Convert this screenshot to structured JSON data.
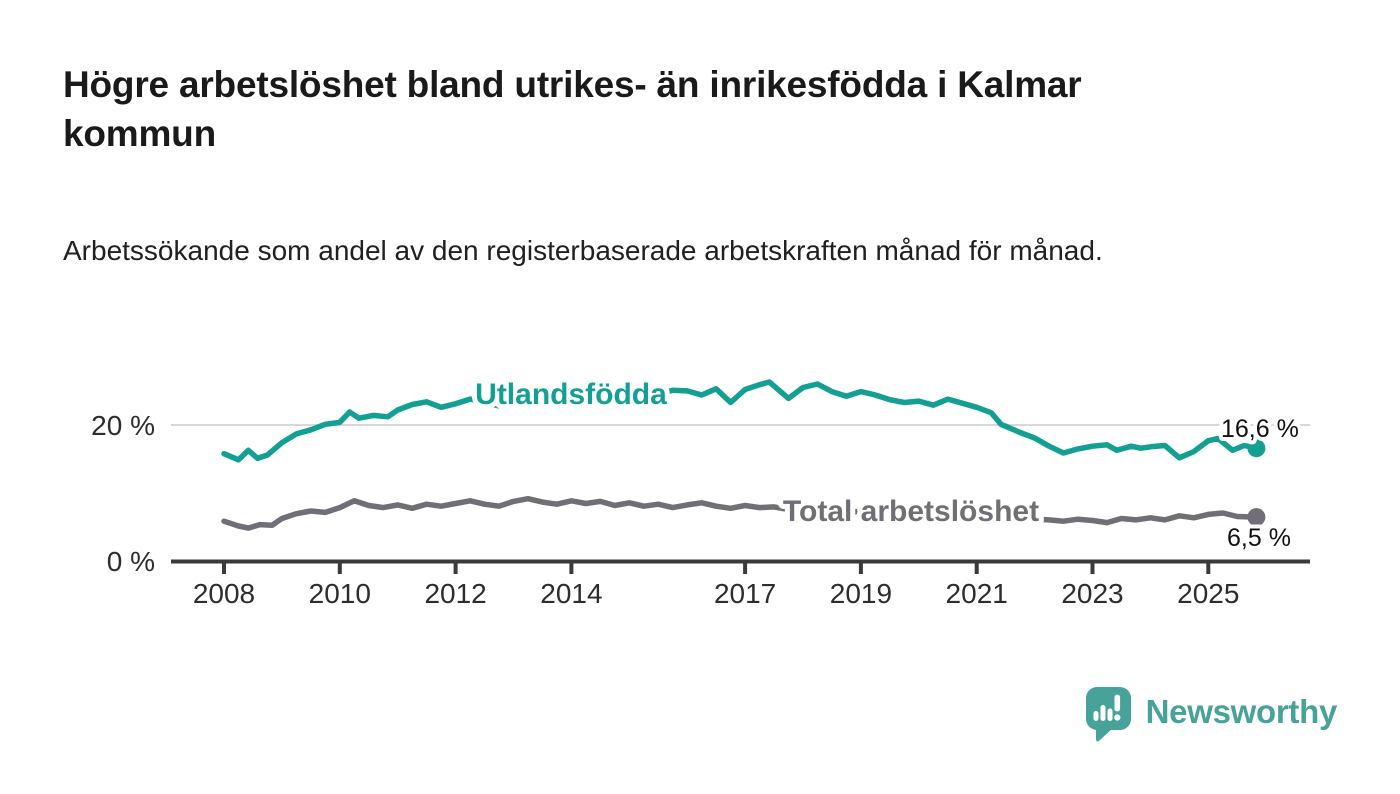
{
  "chart_data": {
    "type": "line",
    "title": "Högre arbetslöshet bland utrikes- än inrikesfödda i Kalmar kommun",
    "subtitle": "Arbetssökande som andel av den registerbaserade arbetskraften månad för månad.",
    "unit": "%",
    "grid": "horizontal-20-only",
    "legend_position": "inline-labels-on-lines",
    "x_axis": {
      "ticks": [
        "2008",
        "2010",
        "2012",
        "2014",
        "2017",
        "2019",
        "2021",
        "2023",
        "2025"
      ],
      "range_years": [
        2007.1,
        2026.7
      ]
    },
    "y_axis": {
      "ticks": [
        {
          "value": 20,
          "label": "20 %"
        },
        {
          "value": 0,
          "label": "0 %"
        }
      ],
      "grid_values": [
        20
      ],
      "range": [
        0,
        28
      ]
    },
    "series": [
      {
        "name": "Utlandsfödda",
        "label_text": "Utlandsfödda",
        "color": "#13a093",
        "end_label": "16,6 %",
        "end_value": 16.6,
        "points": [
          [
            2008.0,
            15.8
          ],
          [
            2008.25,
            14.9
          ],
          [
            2008.42,
            16.3
          ],
          [
            2008.58,
            15.1
          ],
          [
            2008.75,
            15.6
          ],
          [
            2009.0,
            17.4
          ],
          [
            2009.25,
            18.7
          ],
          [
            2009.5,
            19.3
          ],
          [
            2009.75,
            20.1
          ],
          [
            2010.0,
            20.4
          ],
          [
            2010.17,
            21.9
          ],
          [
            2010.33,
            21.0
          ],
          [
            2010.58,
            21.4
          ],
          [
            2010.83,
            21.2
          ],
          [
            2011.0,
            22.2
          ],
          [
            2011.25,
            23.0
          ],
          [
            2011.5,
            23.4
          ],
          [
            2011.75,
            22.6
          ],
          [
            2012.0,
            23.1
          ],
          [
            2012.25,
            23.8
          ],
          [
            2012.5,
            23.3
          ],
          [
            2012.75,
            22.8
          ],
          [
            2013.0,
            23.7
          ],
          [
            2013.25,
            24.2
          ],
          [
            2013.5,
            23.9
          ],
          [
            2013.75,
            23.6
          ],
          [
            2014.0,
            24.1
          ],
          [
            2014.25,
            24.5
          ],
          [
            2014.5,
            24.2
          ],
          [
            2014.75,
            24.0
          ],
          [
            2015.0,
            24.6
          ],
          [
            2015.25,
            24.9
          ],
          [
            2015.5,
            24.4
          ],
          [
            2015.75,
            25.1
          ],
          [
            2016.0,
            25.0
          ],
          [
            2016.25,
            24.4
          ],
          [
            2016.5,
            25.3
          ],
          [
            2016.75,
            23.3
          ],
          [
            2017.0,
            25.2
          ],
          [
            2017.25,
            25.9
          ],
          [
            2017.42,
            26.3
          ],
          [
            2017.75,
            23.9
          ],
          [
            2018.0,
            25.5
          ],
          [
            2018.25,
            26.0
          ],
          [
            2018.5,
            24.9
          ],
          [
            2018.75,
            24.2
          ],
          [
            2019.0,
            24.9
          ],
          [
            2019.25,
            24.4
          ],
          [
            2019.5,
            23.7
          ],
          [
            2019.75,
            23.3
          ],
          [
            2020.0,
            23.5
          ],
          [
            2020.25,
            22.9
          ],
          [
            2020.5,
            23.8
          ],
          [
            2020.75,
            23.2
          ],
          [
            2021.0,
            22.6
          ],
          [
            2021.25,
            21.8
          ],
          [
            2021.42,
            20.1
          ],
          [
            2021.75,
            18.9
          ],
          [
            2022.0,
            18.1
          ],
          [
            2022.25,
            16.9
          ],
          [
            2022.5,
            15.9
          ],
          [
            2022.75,
            16.5
          ],
          [
            2023.0,
            16.9
          ],
          [
            2023.25,
            17.1
          ],
          [
            2023.42,
            16.3
          ],
          [
            2023.67,
            16.9
          ],
          [
            2023.83,
            16.6
          ],
          [
            2024.0,
            16.8
          ],
          [
            2024.25,
            17.0
          ],
          [
            2024.5,
            15.2
          ],
          [
            2024.75,
            16.1
          ],
          [
            2025.0,
            17.7
          ],
          [
            2025.17,
            18.0
          ],
          [
            2025.42,
            16.3
          ],
          [
            2025.62,
            17.0
          ],
          [
            2025.83,
            16.6
          ]
        ]
      },
      {
        "name": "Total arbetslöshet",
        "label_text": "Total arbetslöshet",
        "color": "#716e78",
        "end_label": "6,5 %",
        "end_value": 6.5,
        "points": [
          [
            2008.0,
            5.9
          ],
          [
            2008.25,
            5.2
          ],
          [
            2008.42,
            4.9
          ],
          [
            2008.62,
            5.4
          ],
          [
            2008.83,
            5.3
          ],
          [
            2009.0,
            6.3
          ],
          [
            2009.25,
            7.0
          ],
          [
            2009.5,
            7.4
          ],
          [
            2009.75,
            7.2
          ],
          [
            2010.0,
            7.9
          ],
          [
            2010.25,
            8.9
          ],
          [
            2010.5,
            8.2
          ],
          [
            2010.75,
            7.9
          ],
          [
            2011.0,
            8.3
          ],
          [
            2011.25,
            7.8
          ],
          [
            2011.5,
            8.4
          ],
          [
            2011.75,
            8.1
          ],
          [
            2012.0,
            8.5
          ],
          [
            2012.25,
            8.9
          ],
          [
            2012.5,
            8.4
          ],
          [
            2012.75,
            8.1
          ],
          [
            2013.0,
            8.8
          ],
          [
            2013.25,
            9.2
          ],
          [
            2013.5,
            8.7
          ],
          [
            2013.75,
            8.4
          ],
          [
            2014.0,
            8.9
          ],
          [
            2014.25,
            8.5
          ],
          [
            2014.5,
            8.8
          ],
          [
            2014.75,
            8.2
          ],
          [
            2015.0,
            8.6
          ],
          [
            2015.25,
            8.1
          ],
          [
            2015.5,
            8.4
          ],
          [
            2015.75,
            7.9
          ],
          [
            2016.0,
            8.3
          ],
          [
            2016.25,
            8.6
          ],
          [
            2016.5,
            8.1
          ],
          [
            2016.75,
            7.8
          ],
          [
            2017.0,
            8.2
          ],
          [
            2017.25,
            7.9
          ],
          [
            2017.5,
            8.0
          ],
          [
            2017.75,
            7.6
          ],
          [
            2018.0,
            7.4
          ],
          [
            2018.25,
            7.7
          ],
          [
            2018.5,
            7.3
          ],
          [
            2018.75,
            7.1
          ],
          [
            2019.0,
            7.4
          ],
          [
            2019.25,
            7.1
          ],
          [
            2019.5,
            7.3
          ],
          [
            2019.75,
            6.9
          ],
          [
            2020.0,
            7.2
          ],
          [
            2020.25,
            7.7
          ],
          [
            2020.5,
            7.4
          ],
          [
            2020.75,
            7.1
          ],
          [
            2021.0,
            6.9
          ],
          [
            2021.25,
            6.7
          ],
          [
            2021.5,
            6.5
          ],
          [
            2021.75,
            6.3
          ],
          [
            2022.0,
            6.2
          ],
          [
            2022.25,
            6.1
          ],
          [
            2022.5,
            5.9
          ],
          [
            2022.75,
            6.2
          ],
          [
            2023.0,
            6.0
          ],
          [
            2023.25,
            5.7
          ],
          [
            2023.5,
            6.3
          ],
          [
            2023.75,
            6.1
          ],
          [
            2024.0,
            6.4
          ],
          [
            2024.25,
            6.1
          ],
          [
            2024.5,
            6.7
          ],
          [
            2024.75,
            6.4
          ],
          [
            2025.0,
            6.9
          ],
          [
            2025.25,
            7.1
          ],
          [
            2025.5,
            6.6
          ],
          [
            2025.83,
            6.5
          ]
        ]
      }
    ]
  },
  "footer": {
    "brand": "Newsworthy",
    "brand_color": "#47a29a",
    "logo_icon": "speech-bubble-bar-chart-icon"
  }
}
